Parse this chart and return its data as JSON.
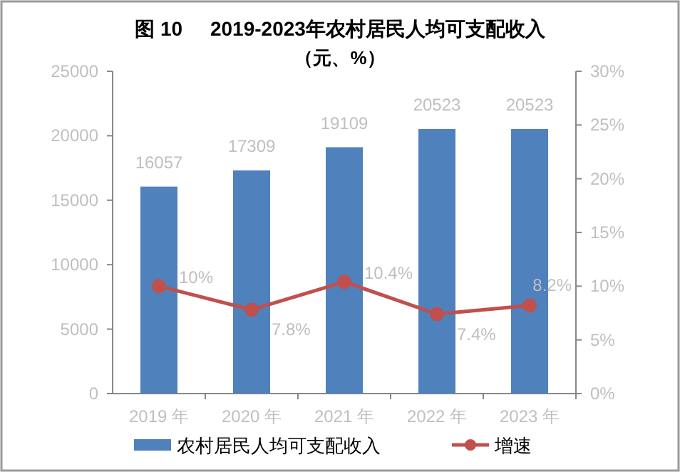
{
  "chart_data": {
    "type": "bar",
    "title": "图 10     2019-2023年农村居民人均可支配收入",
    "subtitle": "（元、%）",
    "categories": [
      "2019 年",
      "2020 年",
      "2021 年",
      "2022 年",
      "2023 年"
    ],
    "series": [
      {
        "name": "农村居民人均可支配收入",
        "color": "#4f81bd",
        "values": [
          16057,
          17309,
          19109,
          20523,
          20523
        ],
        "value_labels": [
          "16057",
          "17309",
          "19109",
          "20523",
          "20523"
        ]
      },
      {
        "name": "增速",
        "type": "line",
        "axis": "y2",
        "color": "#c0504d",
        "marker": "circle",
        "values": [
          10,
          7.8,
          10.4,
          7.4,
          8.2
        ],
        "value_labels": [
          "10%",
          "7.8%",
          "10.4%",
          "7.4%",
          "8.2%"
        ]
      }
    ],
    "ylim": [
      0,
      25000
    ],
    "yticks": [
      0,
      5000,
      10000,
      15000,
      20000,
      25000
    ],
    "y2lim": [
      0,
      30
    ],
    "y2ticks": [
      {
        "value": 0,
        "label": "0%"
      },
      {
        "value": 5,
        "label": "5%"
      },
      {
        "value": 10,
        "label": "10%"
      },
      {
        "value": 15,
        "label": "15%"
      },
      {
        "value": 20,
        "label": "20%"
      },
      {
        "value": 25,
        "label": "25%"
      },
      {
        "value": 30,
        "label": "30%"
      }
    ],
    "legend": "bottom",
    "grid": false
  }
}
